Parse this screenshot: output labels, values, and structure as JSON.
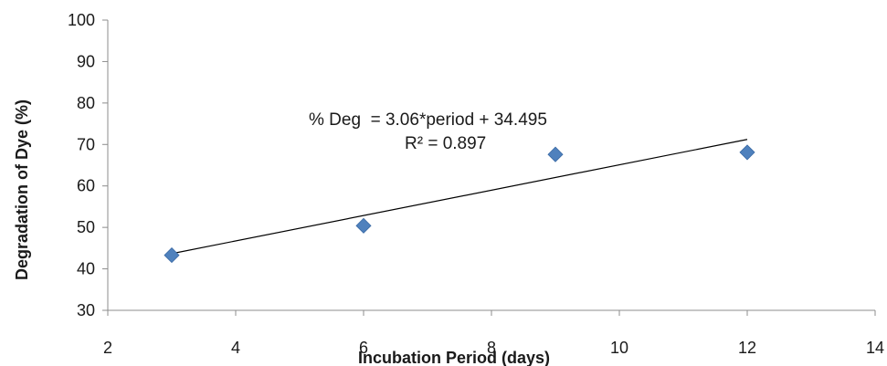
{
  "chart_data": {
    "type": "scatter",
    "title": "",
    "xlabel": "Incubation Period (days)",
    "ylabel": "Degradation of Dye (%)",
    "xlim": [
      2,
      14
    ],
    "ylim": [
      30,
      100
    ],
    "xticks": [
      2,
      4,
      6,
      8,
      10,
      12,
      14
    ],
    "yticks": [
      30,
      40,
      50,
      60,
      70,
      80,
      90,
      100
    ],
    "grid": false,
    "legend": "none",
    "marker_color": "#4f81bd",
    "trendline_color": "#000000",
    "points": [
      {
        "x": 3,
        "y": 43.3
      },
      {
        "x": 6,
        "y": 50.4
      },
      {
        "x": 9,
        "y": 67.6
      },
      {
        "x": 12,
        "y": 68.1
      }
    ],
    "trendline": {
      "slope": 3.06,
      "intercept": 34.495,
      "x_range": [
        3,
        12
      ]
    },
    "annotations": {
      "equation": "% Deg  = 3.06*period + 34.495",
      "r_squared": "R² = 0.897"
    }
  }
}
